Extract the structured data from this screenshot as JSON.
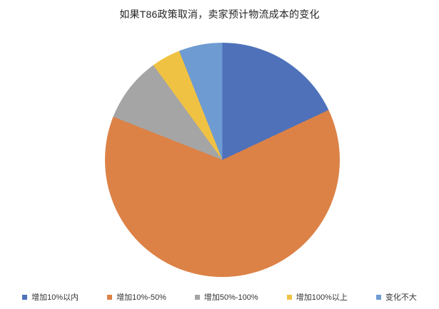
{
  "chart_data": {
    "type": "pie",
    "title": "如果T86政策取消，卖家预计物流成本的变化",
    "unit": "percent_of_total",
    "start_angle_deg": 0,
    "direction": "clockwise",
    "legend_position": "bottom",
    "background_color": "#ffffff",
    "title_color": "#262626",
    "slices": [
      {
        "label": "增加10%以内",
        "value": 18,
        "color": "#4E71BA"
      },
      {
        "label": "增加10%-50%",
        "value": 63,
        "color": "#DC8246"
      },
      {
        "label": "增加50%-100%",
        "value": 9,
        "color": "#A5A5A5"
      },
      {
        "label": "增加100%以上",
        "value": 4,
        "color": "#F0C243"
      },
      {
        "label": "变化不大",
        "value": 6,
        "color": "#6E9BD2"
      }
    ]
  }
}
